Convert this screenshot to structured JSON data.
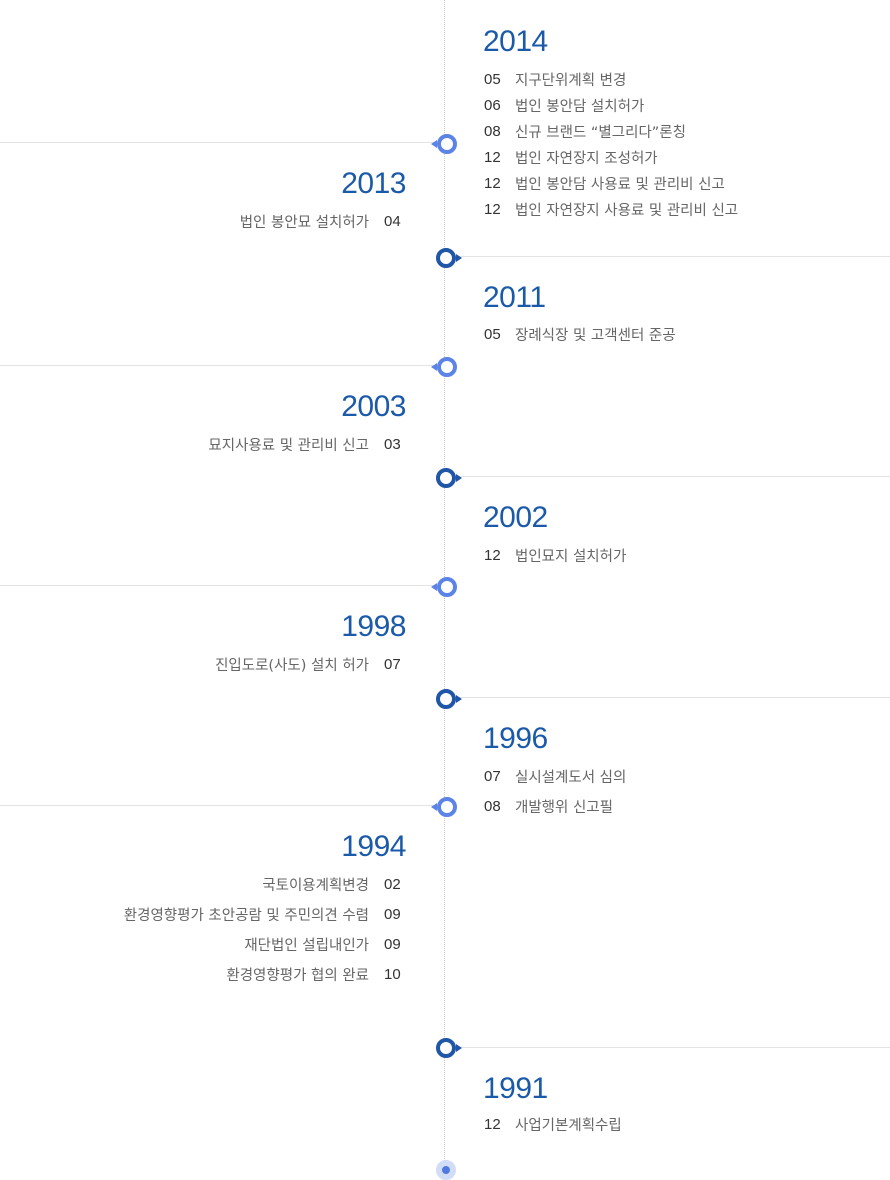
{
  "timeline": {
    "entries": [
      {
        "year": "2014",
        "items": [
          {
            "month": "05",
            "text": "지구단위계획 변경"
          },
          {
            "month": "06",
            "text": "법인 봉안담 설치허가"
          },
          {
            "month": "08",
            "text": "신규 브랜드 “별그리다”론칭"
          },
          {
            "month": "12",
            "text": "법인 자연장지 조성허가"
          },
          {
            "month": "12",
            "text": "법인 봉안담 사용료 및 관리비 신고"
          },
          {
            "month": "12",
            "text": "법인 자연장지 사용료 및 관리비 신고"
          }
        ]
      },
      {
        "year": "2013",
        "items": [
          {
            "month": "04",
            "text": "법인 봉안묘 설치허가"
          }
        ]
      },
      {
        "year": "2011",
        "items": [
          {
            "month": "05",
            "text": "장례식장 및 고객센터 준공"
          }
        ]
      },
      {
        "year": "2003",
        "items": [
          {
            "month": "03",
            "text": "묘지사용료 및 관리비 신고"
          }
        ]
      },
      {
        "year": "2002",
        "items": [
          {
            "month": "12",
            "text": "법인묘지 설치허가"
          }
        ]
      },
      {
        "year": "1998",
        "items": [
          {
            "month": "07",
            "text": "진입도로(사도) 설치 허가"
          }
        ]
      },
      {
        "year": "1996",
        "items": [
          {
            "month": "07",
            "text": "실시설계도서 심의"
          },
          {
            "month": "08",
            "text": "개발행위 신고필"
          }
        ]
      },
      {
        "year": "1994",
        "items": [
          {
            "month": "02",
            "text": "국토이용계획변경"
          },
          {
            "month": "09",
            "text": "환경영향평가 초안공람 및 주민의견 수렴"
          },
          {
            "month": "09",
            "text": "재단법인 설립내인가"
          },
          {
            "month": "10",
            "text": "환경영향평가 협의 완료"
          }
        ]
      },
      {
        "year": "1991",
        "items": [
          {
            "month": "12",
            "text": "사업기본계획수립"
          }
        ]
      }
    ]
  },
  "colors": {
    "year_text": "#1b5aa8",
    "node_light": "#5b84e6",
    "node_dark": "#1f56a8",
    "axis": "#c9c9c9",
    "divider": "#e3e3e3"
  }
}
